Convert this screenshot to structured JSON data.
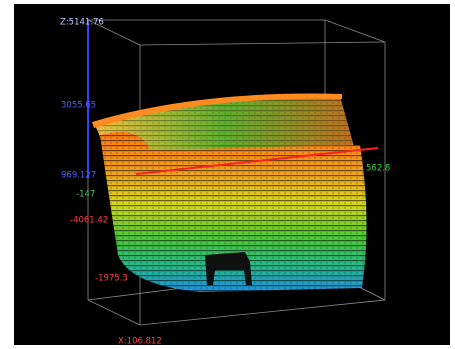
{
  "view": {
    "labels": [
      "Z:5141.76",
      "3055.65",
      "969.127",
      "-147",
      "-4061.42",
      "-1975.3",
      "562.8",
      "X:106.812"
    ]
  }
}
